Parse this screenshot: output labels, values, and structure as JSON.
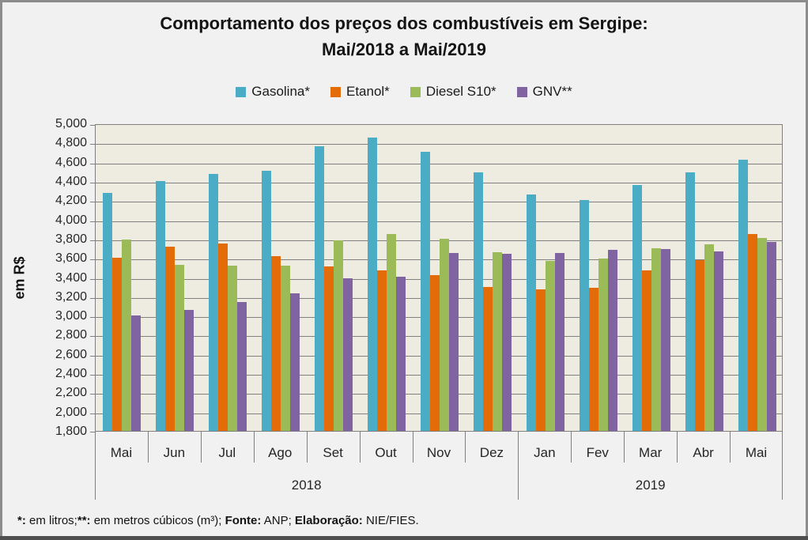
{
  "title": {
    "line1": "Comportamento dos preços dos combustíveis em Sergipe:",
    "line2": "Mai/2018 a Mai/2019"
  },
  "y_axis_title": "em R$",
  "footer": {
    "segments": [
      {
        "text": "*:",
        "bold": true
      },
      {
        "text": " em litros;",
        "bold": false
      },
      {
        "text": "**:",
        "bold": true
      },
      {
        "text": " em metros cúbicos (m³); ",
        "bold": false
      },
      {
        "text": "Fonte:",
        "bold": true
      },
      {
        "text": " ANP; ",
        "bold": false
      },
      {
        "text": "Elaboração:",
        "bold": true
      },
      {
        "text": " NIE/FIES.",
        "bold": false
      }
    ]
  },
  "chart_data": {
    "type": "bar",
    "title": "Comportamento dos preços dos combustíveis em Sergipe: Mai/2018 a Mai/2019",
    "xlabel": "",
    "ylabel": "em R$",
    "ylim": [
      1800,
      5000
    ],
    "ytick_step": 200,
    "ytick_labels": [
      "5,000",
      "4,800",
      "4,600",
      "4,400",
      "4,200",
      "4,000",
      "3,800",
      "3,600",
      "3,400",
      "3,200",
      "3,000",
      "2,800",
      "2,600",
      "2,400",
      "2,200",
      "2,000",
      "1,800"
    ],
    "grid": true,
    "legend_position": "top",
    "plot_background": "#EEECE1",
    "gridline_color": "#808080",
    "categories": [
      "Mai",
      "Jun",
      "Jul",
      "Ago",
      "Set",
      "Out",
      "Nov",
      "Dez",
      "Jan",
      "Fev",
      "Mar",
      "Abr",
      "Mai"
    ],
    "category_groups": [
      {
        "label": "2018",
        "span": 8
      },
      {
        "label": "2019",
        "span": 5
      }
    ],
    "series": [
      {
        "name": "Gasolina*",
        "color": "#4BACC6",
        "values": [
          4280,
          4400,
          4470,
          4510,
          4760,
          4850,
          4700,
          4490,
          4260,
          4200,
          4360,
          4490,
          4620
        ]
      },
      {
        "name": "Etanol*",
        "color": "#E36C09",
        "values": [
          3600,
          3720,
          3750,
          3620,
          3510,
          3470,
          3420,
          3300,
          3270,
          3290,
          3470,
          3580,
          3850
        ]
      },
      {
        "name": "Diesel S10*",
        "color": "#9BBB59",
        "values": [
          3790,
          3530,
          3520,
          3520,
          3780,
          3850,
          3800,
          3660,
          3570,
          3590,
          3700,
          3740,
          3810
        ]
      },
      {
        "name": "GNV**",
        "color": "#8064A2",
        "values": [
          3000,
          3060,
          3140,
          3230,
          3390,
          3400,
          3650,
          3640,
          3650,
          3680,
          3690,
          3670,
          3770
        ]
      }
    ]
  }
}
